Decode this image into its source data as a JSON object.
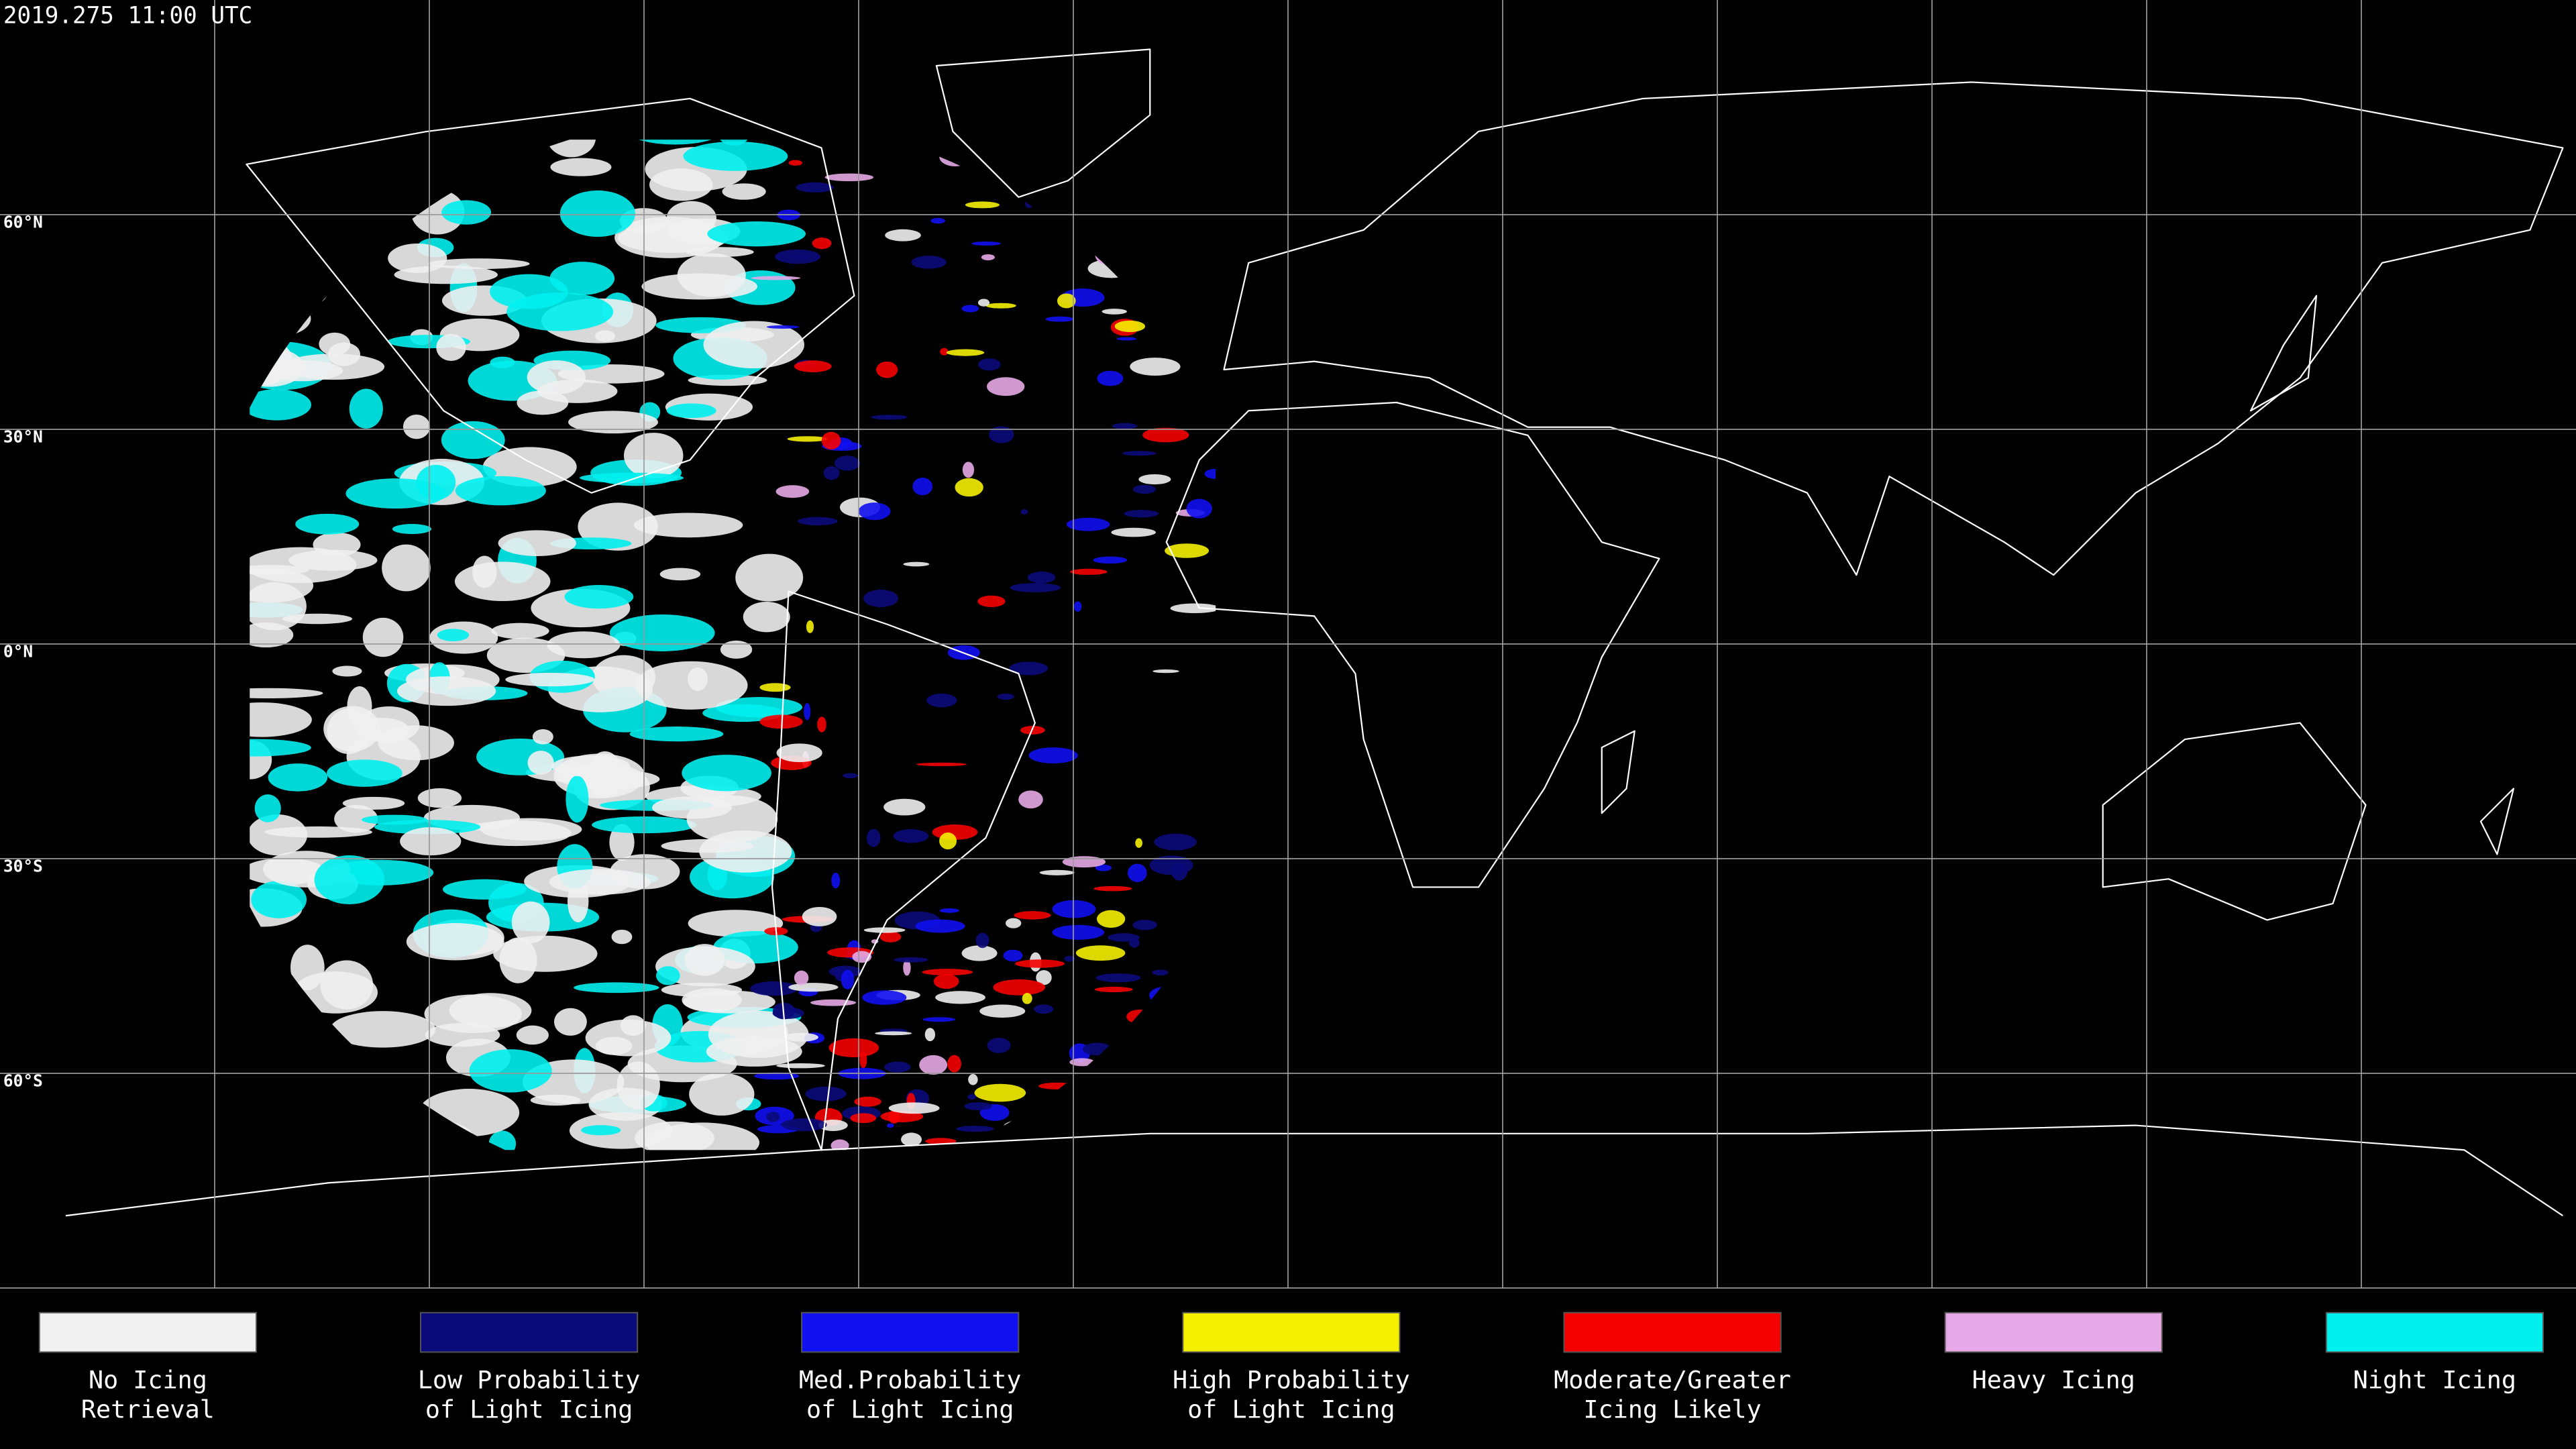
{
  "map": {
    "title": "2019.275 11:00 UTC",
    "latitude_labels": [
      "60°N",
      "30°N",
      "0°N",
      "30°S",
      "60°S"
    ],
    "background": "#000000",
    "line_color": "#ffffff",
    "legend": [
      {
        "color": "#f0f0f0",
        "label": [
          "No Icing",
          "Retrieval"
        ]
      },
      {
        "color": "#0a0a7a",
        "label": [
          "Low Probability",
          "of Light Icing"
        ]
      },
      {
        "color": "#1010f0",
        "label": [
          "Med.Probability",
          "of Light Icing"
        ]
      },
      {
        "color": "#f5f000",
        "label": [
          "High Probability",
          "of Light Icing"
        ]
      },
      {
        "color": "#f50000",
        "label": [
          "Moderate/Greater",
          "Icing Likely"
        ]
      },
      {
        "color": "#e6a8e6",
        "label": [
          "Heavy Icing"
        ]
      },
      {
        "color": "#00f0f0",
        "label": [
          "Night Icing"
        ]
      }
    ]
  }
}
